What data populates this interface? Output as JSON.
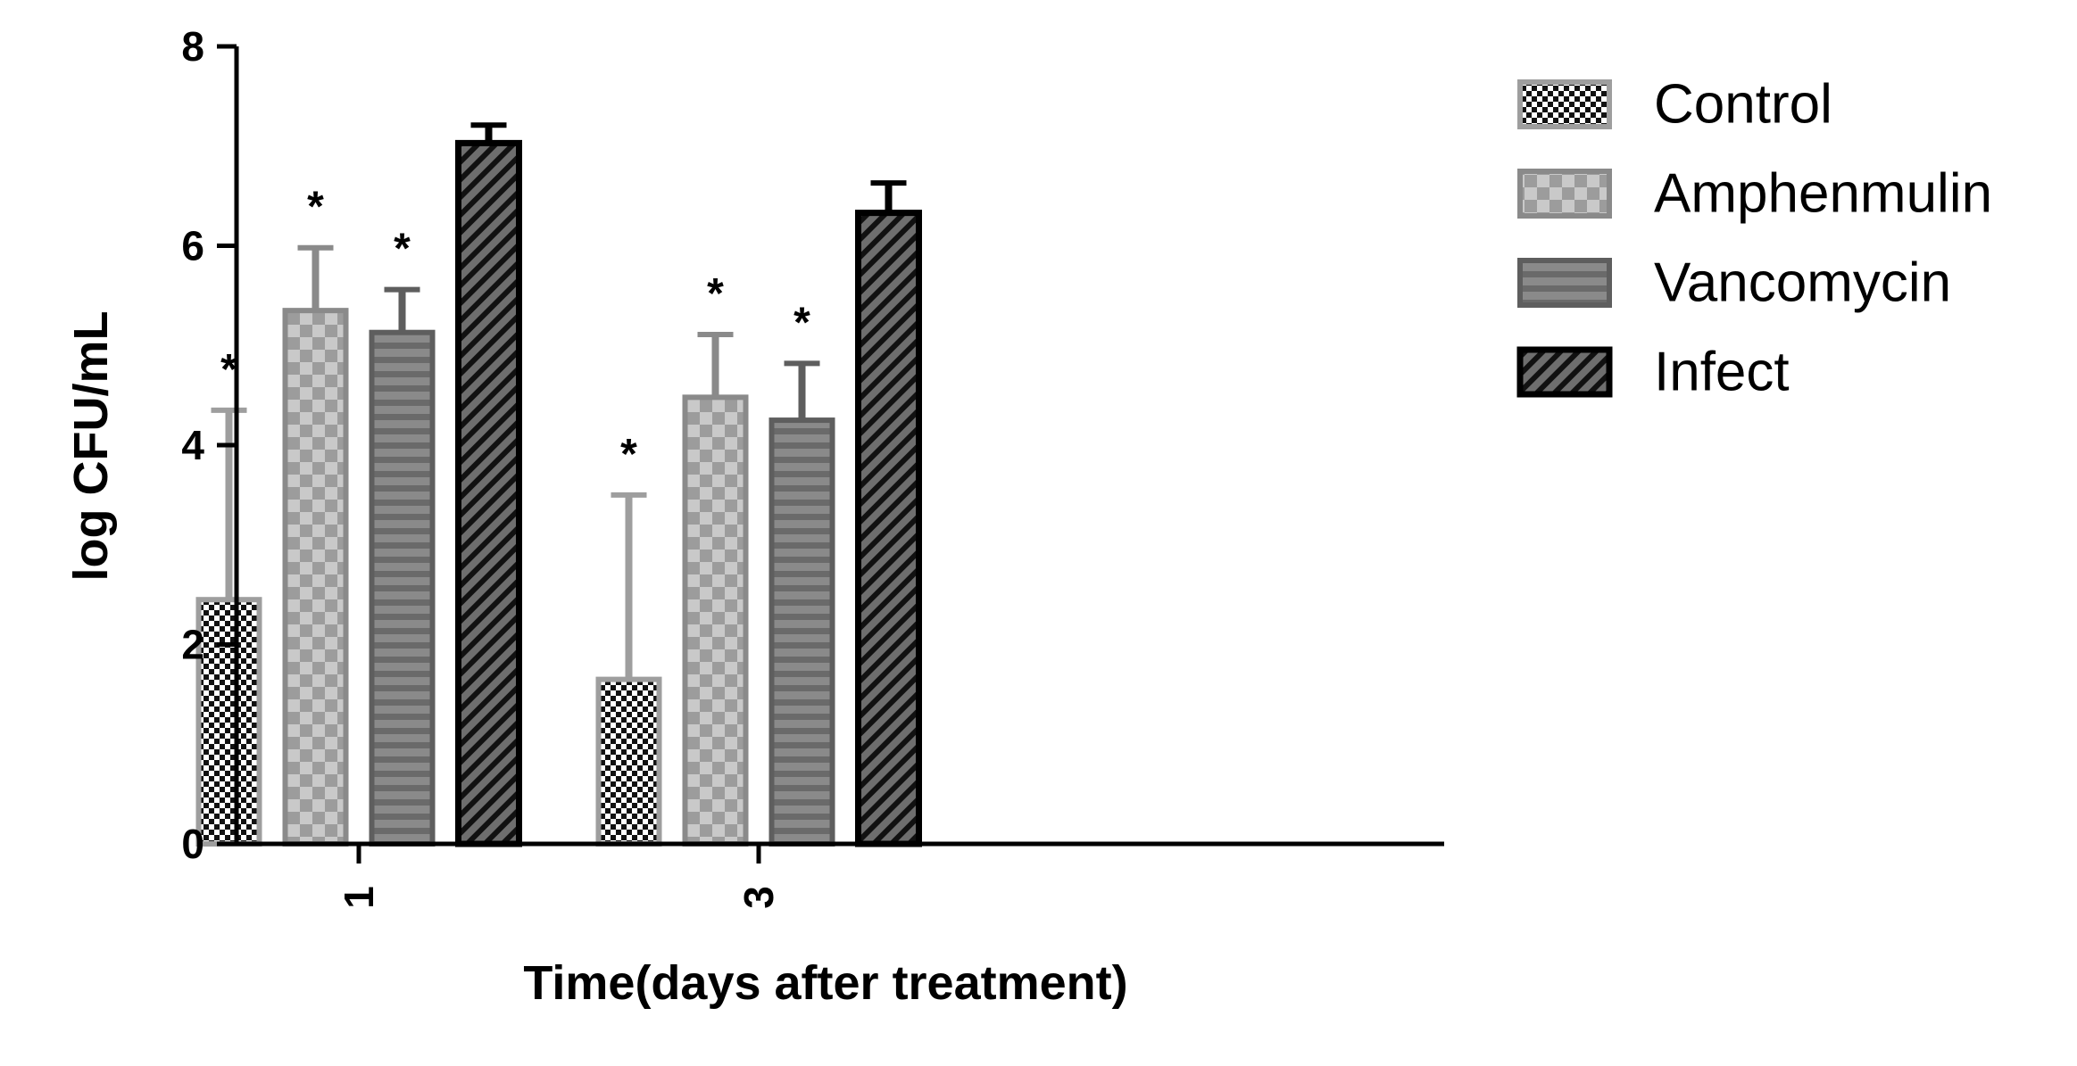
{
  "chart_data": {
    "type": "bar",
    "title": "",
    "xlabel": "Time(days after treatment)",
    "ylabel": "log CFU/mL",
    "ylim": [
      0,
      8
    ],
    "yticks": [
      "0",
      "2",
      "4",
      "6",
      "8"
    ],
    "categories": [
      "1",
      "3"
    ],
    "legend_position": "right",
    "grid": false,
    "series": [
      {
        "name": "Control",
        "values": [
          2.45,
          1.65
        ],
        "errors": [
          1.9,
          1.85
        ],
        "significant": [
          true,
          true
        ],
        "marker": "*",
        "fill": "#111111",
        "stroke": "#9e9e9e",
        "pattern": "checker-dark"
      },
      {
        "name": "Amphenmulin",
        "values": [
          5.35,
          4.48
        ],
        "errors": [
          0.63,
          0.63
        ],
        "significant": [
          true,
          true
        ],
        "marker": "*",
        "fill": "#b5b5b5",
        "stroke": "#8a8a8a",
        "pattern": "checker-light"
      },
      {
        "name": "Vancomycin",
        "values": [
          5.13,
          4.25
        ],
        "errors": [
          0.43,
          0.57
        ],
        "significant": [
          true,
          true
        ],
        "marker": "*",
        "fill": "#7c7c7c",
        "stroke": "#5e5e5e",
        "pattern": "horizontal-stripes"
      },
      {
        "name": "Infect",
        "values": [
          7.03,
          6.33
        ],
        "errors": [
          0.18,
          0.3
        ],
        "significant": [
          false,
          false
        ],
        "marker": "*",
        "fill": "#4a4a4a",
        "stroke": "#000000",
        "pattern": "diagonal-hatch"
      }
    ]
  }
}
